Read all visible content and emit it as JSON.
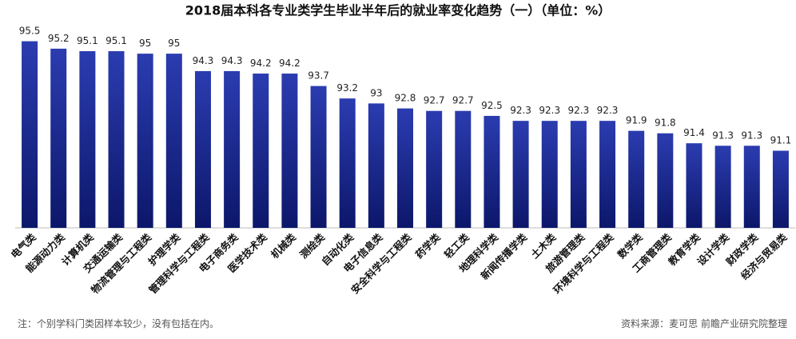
{
  "chart_data": {
    "type": "bar",
    "title": "2018届本科各专业类学生毕业半年后的就业率变化趋势（一）（单位：%）",
    "categories": [
      "电气类",
      "能源动力类",
      "计算机类",
      "交通运输类",
      "物流管理与工程类",
      "护理学类",
      "管理科学与工程类",
      "电子商务类",
      "医学技术类",
      "机械类",
      "测绘类",
      "自动化类",
      "电子信息类",
      "安全科学与工程类",
      "药学类",
      "轻工类",
      "地理科学类",
      "新闻传播学类",
      "土木类",
      "旅游管理类",
      "环境科学与工程类",
      "数学类",
      "工商管理类",
      "教育学类",
      "设计学类",
      "财政学类",
      "经济与贸易类"
    ],
    "values": [
      95.5,
      95.2,
      95.1,
      95.1,
      95,
      95,
      94.3,
      94.3,
      94.2,
      94.2,
      93.7,
      93.2,
      93,
      92.8,
      92.7,
      92.7,
      92.5,
      92.3,
      92.3,
      92.3,
      92.3,
      91.9,
      91.8,
      91.4,
      91.3,
      91.3,
      91.1
    ],
    "color": "#1c2a8c",
    "ylim": [
      88,
      96
    ],
    "note": "注：个别学科门类因样本较少，没有包括在内。",
    "source": "资料来源：麦可思 前瞻产业研究院整理"
  }
}
